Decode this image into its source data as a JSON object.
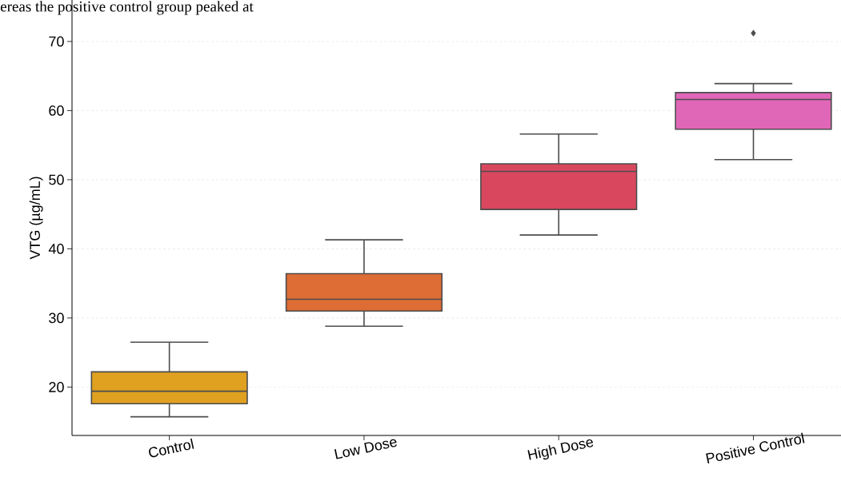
{
  "chart_data": {
    "type": "box",
    "annotations": [
      "ereas the positive control group peaked at"
    ],
    "ylabel": "VTG (µg/mL)",
    "categories": [
      "Control",
      "Low Dose",
      "High Dose",
      "Positive Control"
    ],
    "colors": [
      "#e0a020",
      "#dd6d35",
      "#d9475f",
      "#e066b8"
    ],
    "boxes": [
      {
        "low": 15.7,
        "q1": 17.6,
        "median": 19.4,
        "q3": 22.2,
        "high": 26.5
      },
      {
        "low": 28.8,
        "q1": 31.0,
        "median": 32.7,
        "q3": 36.4,
        "high": 41.3
      },
      {
        "low": 42.0,
        "q1": 45.7,
        "median": 51.2,
        "q3": 52.3,
        "high": 56.6
      },
      {
        "low": 52.9,
        "q1": 57.3,
        "median": 61.6,
        "q3": 62.6,
        "high": 63.9,
        "outliers": [
          71.2
        ]
      }
    ],
    "ylim": [
      13,
      76
    ],
    "yticks": [
      20,
      30,
      40,
      50,
      60,
      70
    ],
    "grid": "y",
    "marker": "diamond"
  }
}
